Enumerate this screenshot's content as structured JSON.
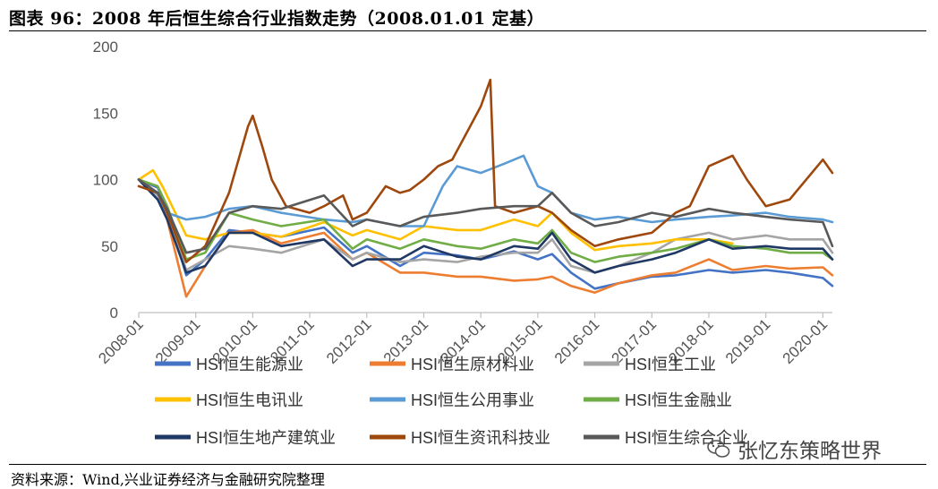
{
  "title": "图表 96：2008 年后恒生综合行业指数走势（2008.01.01 定基）",
  "source": "资料来源：Wind,兴业证券经济与金融研究院整理",
  "watermark": "张忆东策略世界",
  "chart_data": {
    "type": "line",
    "title": "",
    "xlabel": "",
    "ylabel": "",
    "ylim": [
      0,
      200
    ],
    "yticks": [
      "0",
      "50",
      "100",
      "150",
      "200"
    ],
    "xticks": [
      "2008-01",
      "2009-01",
      "2010-01",
      "2011-01",
      "2012-01",
      "2013-01",
      "2014-01",
      "2015-01",
      "2016-01",
      "2017-01",
      "2018-01",
      "2019-01",
      "2020-01"
    ],
    "xlim": [
      "2008-01",
      "2020-03"
    ],
    "grid": false,
    "legend_position": "bottom",
    "series": [
      {
        "name": "HSI恒生能源业",
        "color": "#4472c4",
        "x": [
          "2008-01",
          "2008-05",
          "2008-07",
          "2008-11",
          "2009-03",
          "2009-08",
          "2010-01",
          "2010-07",
          "2011-04",
          "2011-10",
          "2012-01",
          "2012-08",
          "2013-01",
          "2013-08",
          "2014-01",
          "2014-08",
          "2015-01",
          "2015-04",
          "2015-08",
          "2016-01",
          "2016-06",
          "2017-01",
          "2017-06",
          "2018-01",
          "2018-06",
          "2019-01",
          "2019-06",
          "2020-01",
          "2020-03"
        ],
        "values": [
          100,
          94,
          78,
          28,
          40,
          62,
          60,
          57,
          64,
          45,
          50,
          35,
          45,
          43,
          40,
          46,
          40,
          44,
          30,
          18,
          22,
          27,
          28,
          32,
          30,
          32,
          30,
          26,
          20
        ]
      },
      {
        "name": "HSI恒生原材料业",
        "color": "#ed7d31",
        "x": [
          "2008-01",
          "2008-05",
          "2008-07",
          "2008-11",
          "2009-03",
          "2009-08",
          "2010-01",
          "2010-07",
          "2011-04",
          "2011-10",
          "2012-01",
          "2012-08",
          "2013-01",
          "2013-08",
          "2014-01",
          "2014-08",
          "2015-01",
          "2015-04",
          "2015-08",
          "2016-01",
          "2016-06",
          "2017-01",
          "2017-06",
          "2018-01",
          "2018-06",
          "2019-01",
          "2019-06",
          "2020-01",
          "2020-03"
        ],
        "values": [
          100,
          90,
          70,
          12,
          35,
          60,
          62,
          52,
          60,
          40,
          45,
          30,
          30,
          27,
          27,
          24,
          25,
          27,
          20,
          15,
          22,
          28,
          30,
          40,
          32,
          35,
          33,
          34,
          28
        ]
      },
      {
        "name": "HSI恒生工业",
        "color": "#a5a5a5",
        "x": [
          "2008-01",
          "2008-05",
          "2008-07",
          "2008-11",
          "2009-03",
          "2009-08",
          "2010-01",
          "2010-07",
          "2011-04",
          "2011-10",
          "2012-01",
          "2012-08",
          "2013-01",
          "2013-08",
          "2014-01",
          "2014-08",
          "2015-01",
          "2015-04",
          "2015-08",
          "2016-01",
          "2016-06",
          "2017-01",
          "2017-06",
          "2018-01",
          "2018-06",
          "2019-01",
          "2019-06",
          "2020-01",
          "2020-03"
        ],
        "values": [
          100,
          88,
          75,
          32,
          40,
          50,
          48,
          45,
          55,
          40,
          45,
          38,
          40,
          38,
          42,
          45,
          45,
          55,
          35,
          30,
          35,
          45,
          55,
          60,
          55,
          58,
          55,
          55,
          45
        ]
      },
      {
        "name": "HSI恒生电讯业",
        "color": "#ffc000",
        "x": [
          "2008-01",
          "2008-04",
          "2008-06",
          "2008-11",
          "2009-03",
          "2009-08",
          "2010-01",
          "2010-07",
          "2011-04",
          "2011-10",
          "2012-01",
          "2012-08",
          "2013-01",
          "2013-08",
          "2014-01",
          "2014-08",
          "2015-01",
          "2015-04",
          "2015-08",
          "2016-01",
          "2016-06",
          "2017-01",
          "2017-06",
          "2018-01",
          "2018-06"
        ],
        "values": [
          100,
          107,
          95,
          58,
          55,
          60,
          60,
          57,
          68,
          58,
          62,
          55,
          65,
          62,
          62,
          70,
          65,
          75,
          60,
          47,
          50,
          52,
          55,
          55,
          52
        ]
      },
      {
        "name": "HSI恒生公用事业",
        "color": "#5b9bd5",
        "x": [
          "2008-01",
          "2008-05",
          "2008-07",
          "2008-11",
          "2009-03",
          "2009-08",
          "2010-01",
          "2010-07",
          "2011-04",
          "2011-10",
          "2012-01",
          "2012-08",
          "2013-01",
          "2013-05",
          "2013-08",
          "2014-01",
          "2014-06",
          "2014-10",
          "2015-01",
          "2015-04",
          "2015-08",
          "2016-01",
          "2016-06",
          "2017-01",
          "2017-06",
          "2018-01",
          "2018-06",
          "2019-01",
          "2019-06",
          "2020-01",
          "2020-03"
        ],
        "values": [
          100,
          85,
          75,
          70,
          72,
          78,
          80,
          75,
          70,
          68,
          70,
          65,
          65,
          95,
          110,
          105,
          112,
          118,
          95,
          90,
          75,
          70,
          72,
          68,
          70,
          72,
          73,
          75,
          72,
          70,
          68
        ]
      },
      {
        "name": "HSI恒生金融业",
        "color": "#70ad47",
        "x": [
          "2008-01",
          "2008-05",
          "2008-07",
          "2008-11",
          "2009-03",
          "2009-08",
          "2010-01",
          "2010-07",
          "2011-04",
          "2011-10",
          "2012-01",
          "2012-08",
          "2013-01",
          "2013-08",
          "2014-01",
          "2014-08",
          "2015-01",
          "2015-04",
          "2015-08",
          "2016-01",
          "2016-06",
          "2017-01",
          "2017-06",
          "2018-01",
          "2018-06",
          "2019-01",
          "2019-06",
          "2020-01",
          "2020-03"
        ],
        "values": [
          100,
          95,
          80,
          40,
          45,
          75,
          70,
          65,
          70,
          48,
          55,
          48,
          55,
          50,
          48,
          55,
          52,
          62,
          45,
          38,
          42,
          45,
          48,
          55,
          50,
          48,
          45,
          45,
          40
        ]
      },
      {
        "name": "HSI恒生地产建筑业",
        "color": "#1f3864",
        "x": [
          "2008-01",
          "2008-05",
          "2008-07",
          "2008-11",
          "2009-03",
          "2009-08",
          "2010-01",
          "2010-07",
          "2011-04",
          "2011-10",
          "2012-01",
          "2012-08",
          "2013-01",
          "2013-08",
          "2014-01",
          "2014-08",
          "2015-01",
          "2015-04",
          "2015-08",
          "2016-01",
          "2016-06",
          "2017-01",
          "2017-06",
          "2018-01",
          "2018-06",
          "2019-01",
          "2019-06",
          "2020-01",
          "2020-03"
        ],
        "values": [
          100,
          85,
          70,
          30,
          35,
          60,
          60,
          50,
          55,
          35,
          40,
          40,
          50,
          42,
          40,
          50,
          48,
          60,
          40,
          30,
          35,
          40,
          45,
          55,
          48,
          50,
          48,
          48,
          40
        ]
      },
      {
        "name": "HSI恒生资讯科技业",
        "color": "#9e480e",
        "x": [
          "2008-01",
          "2008-05",
          "2008-07",
          "2008-11",
          "2009-03",
          "2009-08",
          "2009-12",
          "2010-01",
          "2010-03",
          "2010-05",
          "2010-08",
          "2011-01",
          "2011-04",
          "2011-08",
          "2011-10",
          "2012-01",
          "2012-05",
          "2012-08",
          "2012-10",
          "2013-01",
          "2013-04",
          "2013-07",
          "2013-10",
          "2014-01",
          "2014-03",
          "2014-04",
          "2014-08",
          "2015-01",
          "2015-04",
          "2015-08",
          "2016-01",
          "2016-06",
          "2017-01",
          "2017-06",
          "2017-09",
          "2018-01",
          "2018-06",
          "2018-09",
          "2019-01",
          "2019-06",
          "2020-01",
          "2020-03"
        ],
        "values": [
          95,
          90,
          75,
          38,
          50,
          90,
          140,
          148,
          125,
          100,
          80,
          75,
          80,
          88,
          70,
          75,
          95,
          90,
          92,
          100,
          110,
          115,
          135,
          155,
          175,
          80,
          75,
          80,
          75,
          62,
          50,
          55,
          60,
          75,
          80,
          110,
          118,
          100,
          80,
          85,
          115,
          105
        ]
      },
      {
        "name": "HSI恒生综合企业",
        "color": "#595959",
        "x": [
          "2008-01",
          "2008-05",
          "2008-07",
          "2008-11",
          "2009-03",
          "2009-08",
          "2010-01",
          "2010-07",
          "2011-04",
          "2011-10",
          "2012-01",
          "2012-08",
          "2013-01",
          "2013-08",
          "2014-01",
          "2014-08",
          "2015-01",
          "2015-04",
          "2015-08",
          "2016-01",
          "2016-06",
          "2017-01",
          "2017-06",
          "2018-01",
          "2018-06",
          "2019-01",
          "2019-06",
          "2020-01",
          "2020-03"
        ],
        "values": [
          100,
          90,
          78,
          45,
          48,
          75,
          80,
          78,
          88,
          65,
          70,
          65,
          72,
          75,
          78,
          80,
          80,
          90,
          75,
          65,
          68,
          75,
          72,
          78,
          75,
          72,
          70,
          68,
          50
        ]
      }
    ]
  }
}
